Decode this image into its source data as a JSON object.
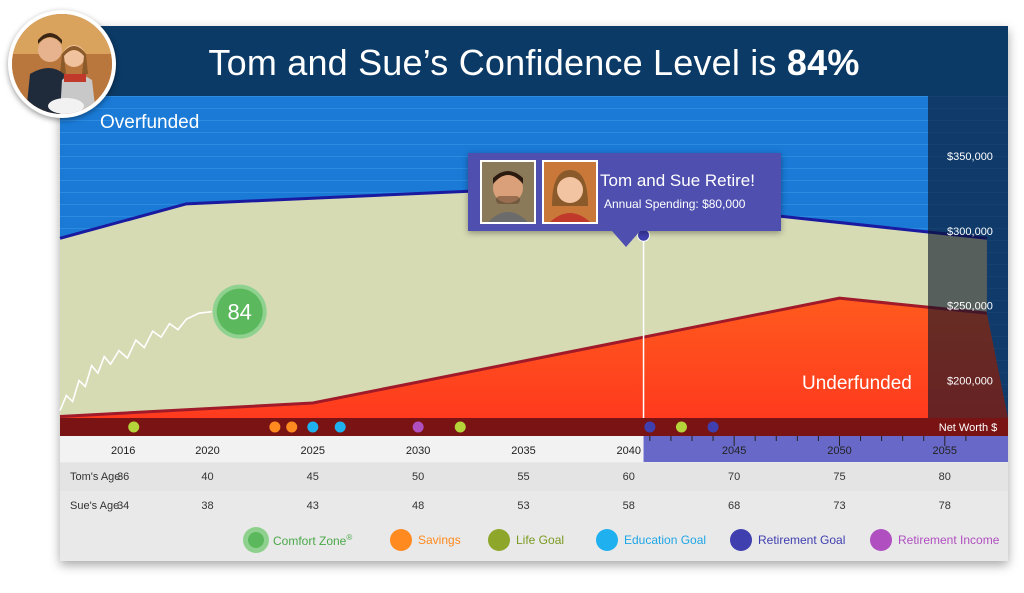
{
  "header": {
    "title_prefix": "Tom and Sue’s Confidence Level is ",
    "title_value": "84%"
  },
  "chart_data": {
    "type": "area",
    "x_ticks": [
      "2016",
      "2020",
      "2025",
      "2030",
      "2035",
      "2040",
      "2045",
      "2050",
      "2055"
    ],
    "y_ticks": [
      "$350,000",
      "$300,000",
      "$250,000",
      "$200,000"
    ],
    "y_axis_label": "Net Worth $",
    "xlim": [
      2013,
      2058
    ],
    "ylim": [
      175000,
      390000
    ],
    "regions": {
      "over": "Overfunded",
      "under": "Underfunded"
    },
    "upper_boundary": {
      "x": [
        2013,
        2019,
        2035,
        2057
      ],
      "y": [
        295000,
        318000,
        328000,
        295000
      ]
    },
    "lower_boundary": {
      "x": [
        2013,
        2025,
        2050,
        2057
      ],
      "y": [
        176000,
        185000,
        255000,
        245000
      ]
    },
    "confidence_history": {
      "x": [
        2013,
        2013.3,
        2013.6,
        2013.9,
        2014.2,
        2014.5,
        2014.8,
        2015.1,
        2015.4,
        2015.8,
        2016.2,
        2016.6,
        2017.0,
        2017.4,
        2017.8,
        2018.2,
        2018.6,
        2019.0,
        2019.6,
        2020.2
      ],
      "y": [
        180000,
        190000,
        186000,
        200000,
        196000,
        210000,
        205000,
        216000,
        211000,
        220000,
        215000,
        227000,
        222000,
        233000,
        229000,
        238000,
        234000,
        241000,
        245000,
        246000
      ]
    },
    "confidence_score": "84",
    "event_line_x": 2040.7,
    "event_point_y": 297000,
    "events": [
      {
        "x": 2016.5,
        "type": "life"
      },
      {
        "x": 2023.2,
        "type": "savings"
      },
      {
        "x": 2024.0,
        "type": "savings"
      },
      {
        "x": 2025.0,
        "type": "education"
      },
      {
        "x": 2026.3,
        "type": "education"
      },
      {
        "x": 2030.0,
        "type": "retirement_income"
      },
      {
        "x": 2032.0,
        "type": "life"
      },
      {
        "x": 2041.0,
        "type": "retirement"
      },
      {
        "x": 2042.5,
        "type": "life"
      },
      {
        "x": 2044.0,
        "type": "retirement"
      }
    ]
  },
  "tooltip": {
    "title": "Tom and Sue Retire!",
    "subtitle": "Annual Spending: $80,000"
  },
  "ages": {
    "tom_label": "Tom's Age",
    "sue_label": "Sue's Age",
    "tom": [
      "36",
      "40",
      "45",
      "50",
      "55",
      "60",
      "70",
      "75",
      "80"
    ],
    "sue": [
      "34",
      "38",
      "43",
      "48",
      "53",
      "58",
      "68",
      "73",
      "78"
    ]
  },
  "legend": [
    {
      "name": "comfort-zone",
      "label": "Comfort Zone",
      "sup": "®",
      "color": "#5cb85c",
      "text_color": "#4aa84a"
    },
    {
      "name": "savings",
      "label": "Savings",
      "sup": "",
      "color": "#ff8a1f",
      "text_color": "#ff8a1f"
    },
    {
      "name": "life-goal",
      "label": "Life Goal",
      "sup": "",
      "color": "#8ea629",
      "text_color": "#7a9a20"
    },
    {
      "name": "education-goal",
      "label": "Education Goal",
      "sup": "",
      "color": "#1fb0f0",
      "text_color": "#1fa6e6"
    },
    {
      "name": "retirement-goal",
      "label": "Retirement Goal",
      "sup": "",
      "color": "#3f3fb0",
      "text_color": "#3f3fb0"
    },
    {
      "name": "retirement-income",
      "label": "Retirement Income",
      "sup": "",
      "color": "#b04fc0",
      "text_color": "#b04fc0"
    }
  ],
  "colors": {
    "over": "#1a75d2",
    "green": "#d6dbb4",
    "under": "#ff4d1f",
    "boundary_top": "#1a1aa0",
    "boundary_bottom": "#a01a2a",
    "score_fill": "#5cb85c"
  }
}
